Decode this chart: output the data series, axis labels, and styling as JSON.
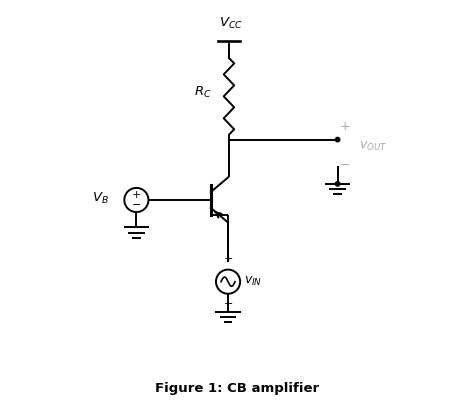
{
  "title": "Figure 1: CB amplifier",
  "background_color": "#ffffff",
  "line_color": "#000000",
  "fig_width": 4.74,
  "fig_height": 4.08,
  "dpi": 100,
  "label_VCC": "$V_{CC}$",
  "label_RC": "$R_C$",
  "label_VB": "$V_B$",
  "label_vOUT": "$v_{OUT}$",
  "label_vIN": "$v_{IN}$",
  "gray_color": "#aaaaaa"
}
